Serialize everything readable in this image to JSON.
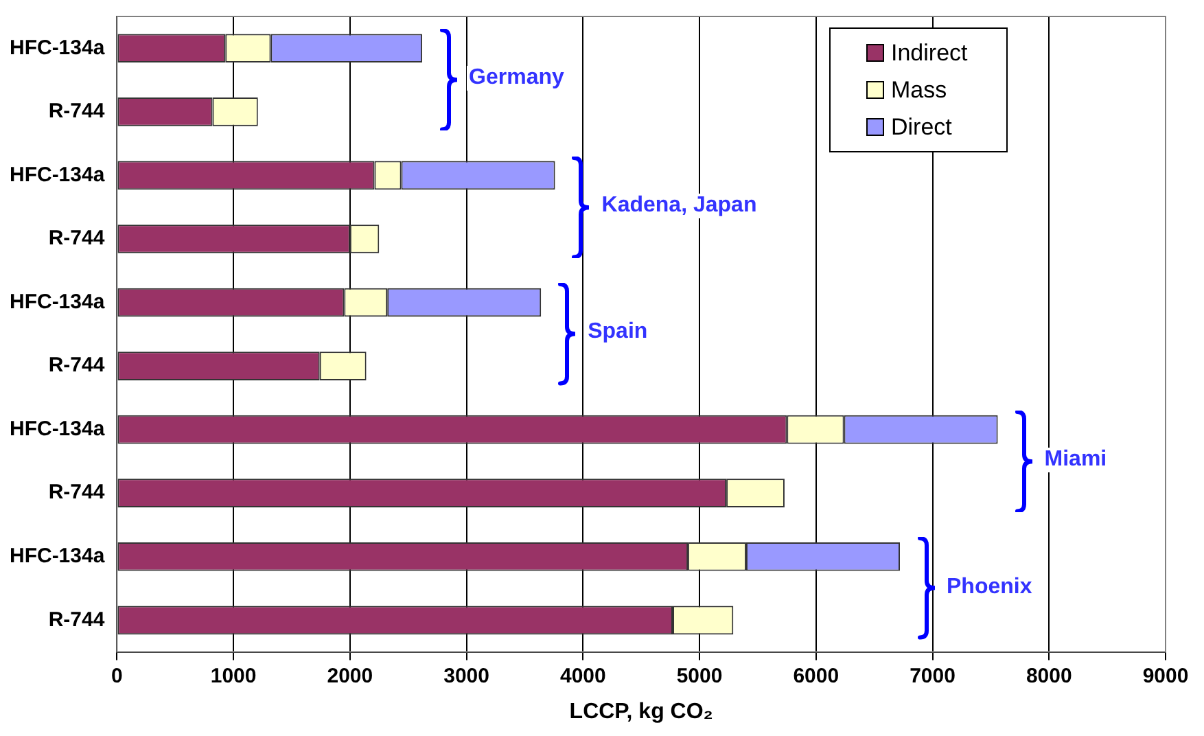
{
  "chart_data": {
    "type": "bar",
    "orientation": "horizontal",
    "stacked": true,
    "categories": [
      "HFC-134a",
      "R-744",
      "HFC-134a",
      "R-744",
      "HFC-134a",
      "R-744",
      "HFC-134a",
      "R-744",
      "HFC-134a",
      "R-744"
    ],
    "series": [
      {
        "name": "Indirect",
        "color": "#993366",
        "values": [
          930,
          820,
          2210,
          2000,
          1950,
          1740,
          5750,
          5230,
          4900,
          4770
        ]
      },
      {
        "name": "Mass",
        "color": "#ffffcc",
        "values": [
          390,
          390,
          230,
          250,
          370,
          400,
          490,
          500,
          500,
          520
        ]
      },
      {
        "name": "Direct",
        "color": "#9999ff",
        "values": [
          1300,
          null,
          1320,
          null,
          1320,
          null,
          1320,
          null,
          1320,
          null
        ]
      }
    ],
    "xlabel": "LCCP, kg CO₂",
    "xlim": [
      0,
      9000
    ],
    "xticks": [
      0,
      1000,
      2000,
      3000,
      4000,
      5000,
      6000,
      7000,
      8000,
      9000
    ],
    "grid": "x",
    "legend": "top right",
    "annotations": [
      "Germany",
      "Kadena, Japan",
      "Spain",
      "Miami",
      "Phoenix"
    ]
  }
}
